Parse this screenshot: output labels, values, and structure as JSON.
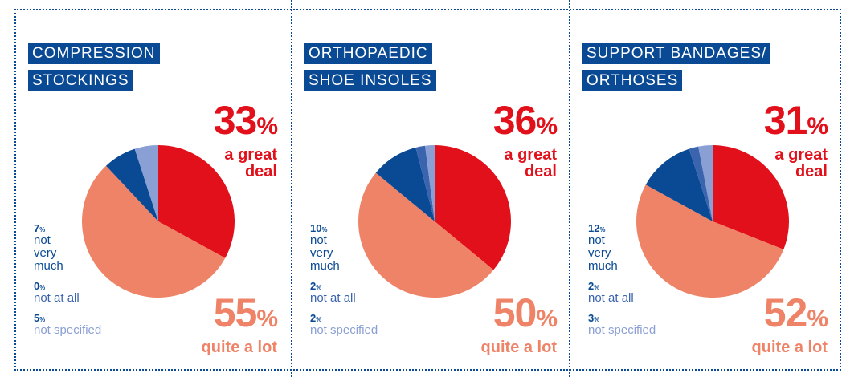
{
  "chart_data": [
    {
      "type": "pie",
      "title": [
        "COMPRESSION",
        "STOCKINGS"
      ],
      "categories": [
        "a great deal",
        "quite a lot",
        "not very much",
        "not at all",
        "not specified"
      ],
      "values": [
        33,
        55,
        7,
        0,
        5
      ],
      "value_labels": [
        "33%",
        "55%",
        "7%",
        "0%",
        "5%"
      ],
      "colors": [
        "#e2101a",
        "#ee8368",
        "#0a4a94",
        "#3a64ad",
        "#8a9fd4"
      ]
    },
    {
      "type": "pie",
      "title": [
        "ORTHOPAEDIC",
        "SHOE INSOLES"
      ],
      "categories": [
        "a great deal",
        "quite a lot",
        "not very much",
        "not at all",
        "not specified"
      ],
      "values": [
        36,
        50,
        10,
        2,
        2
      ],
      "value_labels": [
        "36%",
        "50%",
        "10%",
        "2%",
        "2%"
      ],
      "colors": [
        "#e2101a",
        "#ee8368",
        "#0a4a94",
        "#3a64ad",
        "#8a9fd4"
      ]
    },
    {
      "type": "pie",
      "title": [
        "SUPPORT BANDAGES/",
        "ORTHOSES"
      ],
      "categories": [
        "a great deal",
        "quite a lot",
        "not very much",
        "not at all",
        "not specified"
      ],
      "values": [
        31,
        52,
        12,
        2,
        3
      ],
      "value_labels": [
        "31%",
        "52%",
        "12%",
        "2%",
        "3%"
      ],
      "colors": [
        "#e2101a",
        "#ee8368",
        "#0a4a94",
        "#3a64ad",
        "#8a9fd4"
      ]
    }
  ]
}
